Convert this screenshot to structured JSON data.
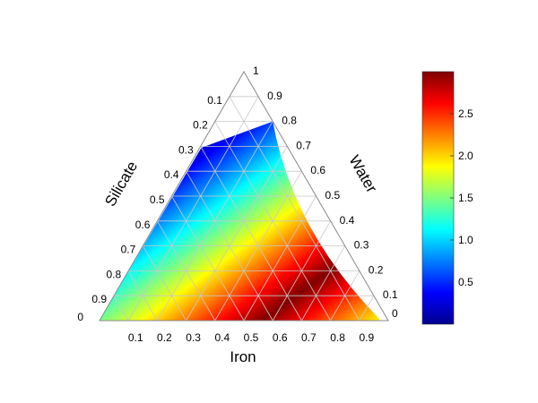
{
  "chart_data": {
    "type": "heatmap",
    "subtype": "ternary",
    "title": "",
    "axes": {
      "bottom": {
        "label": "Iron",
        "ticks": [
          "0.1",
          "0.2",
          "0.3",
          "0.4",
          "0.5",
          "0.6",
          "0.7",
          "0.8",
          "0.9"
        ]
      },
      "left": {
        "label": "Silicate",
        "ticks": [
          "0",
          "0.9",
          "0.8",
          "0.7",
          "0.6",
          "0.5",
          "0.4",
          "0.3",
          "0.2",
          "0.1"
        ]
      },
      "right": {
        "label": "Water",
        "ticks": [
          "1",
          "0.9",
          "0.8",
          "0.7",
          "0.6",
          "0.5",
          "0.4",
          "0.3",
          "0.2",
          "0.1",
          "0"
        ]
      }
    },
    "grid": true,
    "colormap": "jet",
    "colorbar": {
      "min": 0,
      "max": 3.0,
      "ticks": [
        "0.5",
        "1.0",
        "1.5",
        "2.0",
        "2.5"
      ],
      "placement": "right"
    },
    "colored_region": {
      "description_values": "water fraction up to about 0.8",
      "water_max": 0.8
    },
    "colors": {
      "background": "#ffffff",
      "triangle_edge": "#888888",
      "grid_line": "#c8c8c8",
      "text": "#000000"
    }
  }
}
